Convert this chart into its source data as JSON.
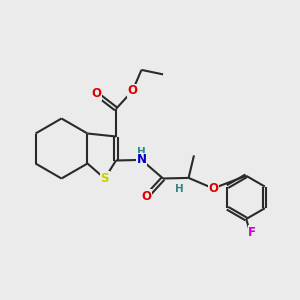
{
  "bg_color": "#ebebeb",
  "bond_color": "#2a2a2a",
  "bond_lw": 1.5,
  "dbo": 0.06,
  "atom_colors": {
    "O": "#dd0000",
    "S": "#cccc00",
    "N": "#0000cc",
    "F": "#cc00cc",
    "H": "#338888"
  },
  "fs": 8.5,
  "figsize": [
    3.0,
    3.0
  ],
  "dpi": 100
}
